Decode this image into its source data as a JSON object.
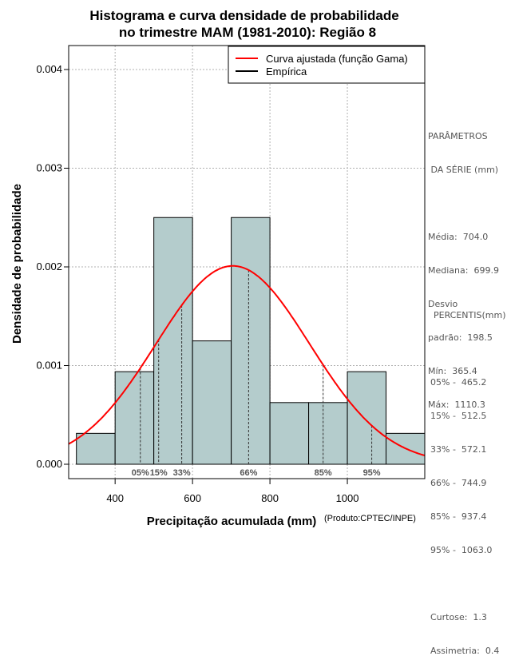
{
  "chart_data": {
    "type": "histogram",
    "title_line1": "Histograma e curva densidade de probabilidade",
    "title_line2": "no trimestre MAM (1981-2010): Região 8",
    "xlabel": "Precipitação acumulada (mm)",
    "ylabel": "Densidade de probabilidade",
    "credit": "(Produto:CPTEC/INPE)",
    "xlim": [
      280,
      1200
    ],
    "ylim": [
      0,
      0.00425
    ],
    "xticks": [
      400,
      600,
      800,
      1000
    ],
    "xtick_labels": [
      "400",
      "600",
      "800",
      "1000"
    ],
    "yticks": [
      0,
      0.001,
      0.002,
      0.003,
      0.004
    ],
    "ytick_labels": [
      "0.000",
      "0.001",
      "0.002",
      "0.003",
      "0.004"
    ],
    "grid": true,
    "bins": [
      {
        "from": 300,
        "to": 400,
        "density": 0.000313
      },
      {
        "from": 400,
        "to": 500,
        "density": 0.000938
      },
      {
        "from": 500,
        "to": 600,
        "density": 0.0025
      },
      {
        "from": 600,
        "to": 700,
        "density": 0.00125
      },
      {
        "from": 700,
        "to": 800,
        "density": 0.0025
      },
      {
        "from": 800,
        "to": 900,
        "density": 0.000625
      },
      {
        "from": 900,
        "to": 1000,
        "density": 0.000625
      },
      {
        "from": 1000,
        "to": 1100,
        "density": 0.000938
      },
      {
        "from": 1100,
        "to": 1200,
        "density": 0.000313
      }
    ],
    "curve": {
      "name": "Curva ajustada (função Gama)",
      "color": "#ff0000",
      "mean": 704.0,
      "sd": 198.5
    },
    "percentile_markers": [
      {
        "label": "05%",
        "value": 465.2
      },
      {
        "label": "15%",
        "value": 512.5
      },
      {
        "label": "33%",
        "value": 572.1
      },
      {
        "label": "66%",
        "value": 744.9
      },
      {
        "label": "85%",
        "value": 937.4
      },
      {
        "label": "95%",
        "value": 1063.0
      }
    ],
    "legend": [
      {
        "label": "Curva ajustada (função Gama)",
        "color": "#ff0000"
      },
      {
        "label": "Empírica",
        "color": "#000000"
      }
    ],
    "legend_position": "top-right",
    "bar_color": "#b4cccc",
    "grid_color": "#b0b0b0"
  },
  "sidebar": {
    "params_heading_1": "PARÂMETROS",
    "params_heading_2": " DA SÉRIE (mm)",
    "params": [
      "Média:  704.0",
      "Mediana:  699.9",
      "Desvio",
      "padrão:  198.5",
      "Mín:  365.4",
      "Máx:  1110.3"
    ],
    "percentis_heading": "PERCENTIS(mm)",
    "percentis": [
      "05% -  465.2",
      "15% -  512.5",
      "33% -  572.1",
      "66% -  744.9",
      "85% -  937.4",
      "95% -  1063.0"
    ],
    "stats": [
      "Curtose:  1.3",
      "Assimetria:  0.4"
    ]
  }
}
